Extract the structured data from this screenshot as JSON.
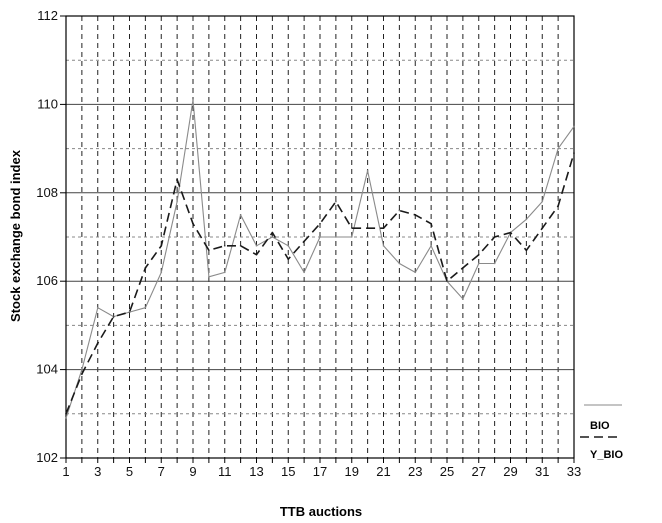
{
  "chart_data": {
    "type": "line",
    "xlabel": "TTB auctions",
    "ylabel": "Stock exchange bond index",
    "ylim": [
      102,
      112
    ],
    "xlim": [
      1,
      33
    ],
    "y_ticks": [
      "102",
      "104",
      "106",
      "108",
      "110",
      "112"
    ],
    "x_ticks": [
      "1",
      "3",
      "5",
      "7",
      "9",
      "11",
      "13",
      "15",
      "17",
      "19",
      "21",
      "23",
      "25",
      "27",
      "29",
      "31",
      "33"
    ],
    "grid": true,
    "legend_position": "bottom-right",
    "x": [
      1,
      2,
      3,
      4,
      5,
      6,
      7,
      8,
      9,
      10,
      11,
      12,
      13,
      14,
      15,
      16,
      17,
      18,
      19,
      20,
      21,
      22,
      23,
      24,
      25,
      26,
      27,
      28,
      29,
      30,
      31,
      32,
      33
    ],
    "series": [
      {
        "name": "BIO",
        "style": "solid",
        "color": "#8a8a8a",
        "values": [
          102.9,
          104.0,
          105.4,
          105.2,
          105.3,
          105.4,
          106.2,
          107.8,
          110.1,
          106.1,
          106.2,
          107.5,
          106.8,
          107.0,
          106.8,
          106.2,
          107.0,
          107.0,
          107.0,
          108.5,
          106.8,
          106.4,
          106.2,
          106.8,
          106.0,
          105.6,
          106.4,
          106.4,
          107.1,
          107.4,
          107.8,
          109.0,
          109.5
        ]
      },
      {
        "name": "Y_BIO",
        "style": "dashed",
        "color": "#1a1a1a",
        "values": [
          103.0,
          103.9,
          104.6,
          105.2,
          105.3,
          106.3,
          106.8,
          108.3,
          107.3,
          106.7,
          106.8,
          106.8,
          106.6,
          107.1,
          106.5,
          106.9,
          107.3,
          107.8,
          107.2,
          107.2,
          107.2,
          107.6,
          107.5,
          107.3,
          106.0,
          106.3,
          106.6,
          107.0,
          107.1,
          106.7,
          107.2,
          107.7,
          108.9
        ]
      }
    ]
  }
}
